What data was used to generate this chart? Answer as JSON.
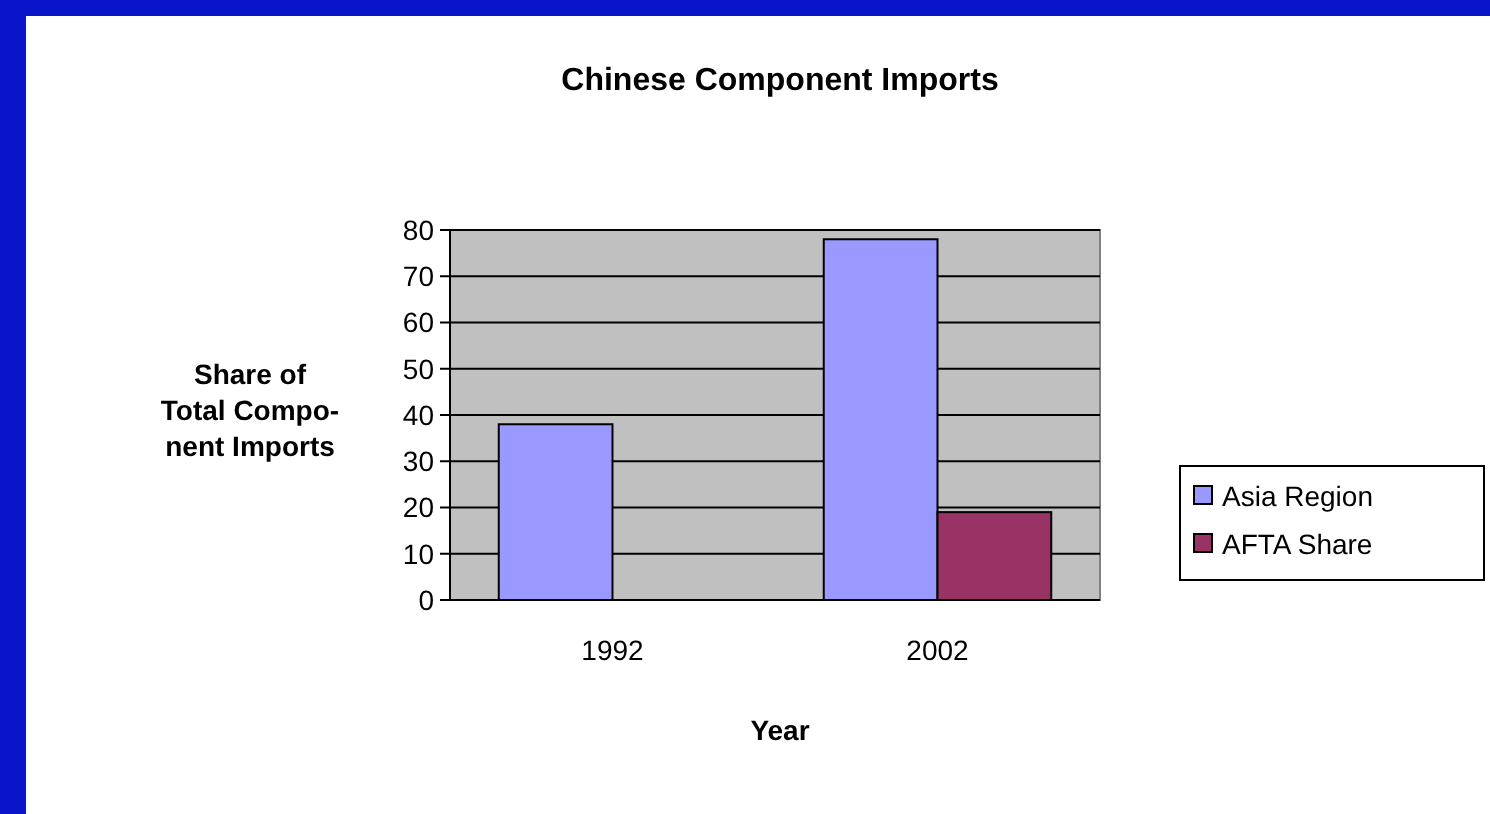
{
  "chart_data": {
    "type": "bar",
    "title": "Chinese Component Imports",
    "xlabel": "Year",
    "ylabel": "Share of Total Compo- nent Imports",
    "categories": [
      "1992",
      "2002"
    ],
    "series": [
      {
        "name": "Asia Region",
        "color": "#9999ff",
        "values": [
          38,
          78
        ]
      },
      {
        "name": "AFTA Share",
        "color": "#993366",
        "values": [
          0,
          19
        ]
      }
    ],
    "ylim": [
      0,
      80
    ],
    "yticks": [
      0,
      10,
      20,
      30,
      40,
      50,
      60,
      70,
      80
    ],
    "grid": "y",
    "legend": "right"
  }
}
